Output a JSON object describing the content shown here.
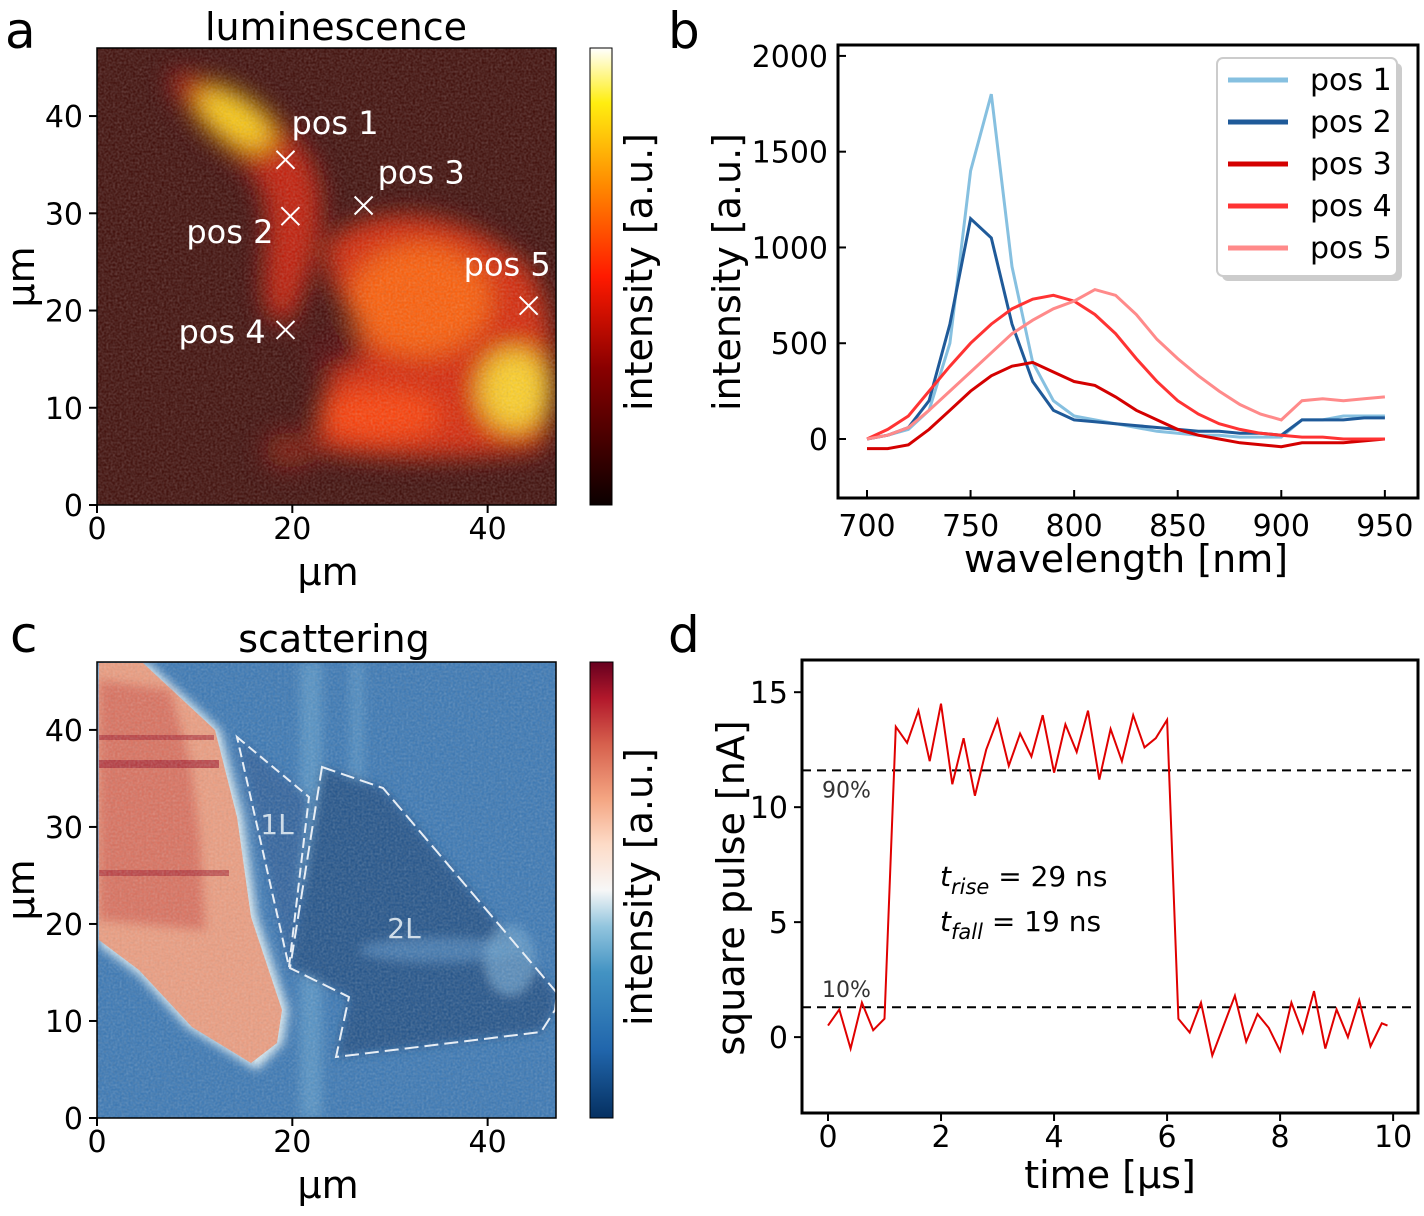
{
  "panel_labels": [
    "a",
    "b",
    "c",
    "d"
  ],
  "chart_data": [
    {
      "type": "heatmap",
      "panel": "a",
      "title": "luminescence",
      "xlabel": "µm",
      "ylabel": "µm",
      "xticks": [
        "0",
        "20",
        "40"
      ],
      "yticks": [
        "0",
        "10",
        "20",
        "30",
        "40"
      ],
      "xlim": [
        0,
        47
      ],
      "ylim": [
        0,
        47
      ],
      "colorbar_label": "intensity [a.u.]",
      "colormap": "hot",
      "markers": [
        {
          "label": "pos 1",
          "x": 19.3,
          "y": 35.5
        },
        {
          "label": "pos 2",
          "x": 19.8,
          "y": 29.7
        },
        {
          "label": "pos 3",
          "x": 27.3,
          "y": 30.8
        },
        {
          "label": "pos 4",
          "x": 19.3,
          "y": 18.0
        },
        {
          "label": "pos 5",
          "x": 44.2,
          "y": 20.5
        }
      ]
    },
    {
      "type": "line",
      "panel": "b",
      "xlabel": "wavelength [nm]",
      "ylabel": "intensity [a.u.]",
      "xticks": [
        "700",
        "750",
        "800",
        "850",
        "900",
        "950"
      ],
      "yticks": [
        "0",
        "500",
        "1000",
        "1500",
        "2000"
      ],
      "xlim": [
        686,
        966
      ],
      "ylim": [
        -308,
        2057
      ],
      "legend": "top-right",
      "x": [
        700,
        710,
        720,
        730,
        740,
        750,
        760,
        770,
        780,
        790,
        800,
        810,
        820,
        830,
        840,
        850,
        860,
        870,
        880,
        890,
        900,
        910,
        920,
        930,
        940,
        950
      ],
      "series": [
        {
          "name": "pos 1",
          "color": "#86c0e0",
          "values": [
            0,
            20,
            50,
            150,
            500,
            1400,
            1800,
            900,
            400,
            200,
            120,
            100,
            80,
            60,
            40,
            30,
            20,
            20,
            10,
            10,
            10,
            100,
            100,
            120,
            120,
            120
          ]
        },
        {
          "name": "pos 2",
          "color": "#1f5a99",
          "values": [
            0,
            20,
            60,
            200,
            600,
            1150,
            1050,
            600,
            300,
            150,
            100,
            90,
            80,
            70,
            60,
            50,
            40,
            40,
            30,
            30,
            20,
            100,
            100,
            100,
            110,
            110
          ]
        },
        {
          "name": "pos 3",
          "color": "#d40000",
          "values": [
            -50,
            -50,
            -30,
            50,
            150,
            250,
            330,
            380,
            400,
            350,
            300,
            280,
            220,
            150,
            100,
            50,
            20,
            0,
            -20,
            -30,
            -40,
            -20,
            -20,
            -20,
            -10,
            0
          ]
        },
        {
          "name": "pos 4",
          "color": "#ff3333",
          "values": [
            0,
            50,
            120,
            250,
            380,
            500,
            600,
            680,
            730,
            750,
            720,
            650,
            550,
            420,
            300,
            200,
            130,
            80,
            50,
            30,
            20,
            10,
            10,
            0,
            0,
            0
          ]
        },
        {
          "name": "pos 5",
          "color": "#ff8a8a",
          "values": [
            0,
            20,
            60,
            150,
            250,
            350,
            450,
            550,
            620,
            680,
            720,
            780,
            750,
            650,
            520,
            420,
            330,
            250,
            180,
            130,
            100,
            200,
            210,
            200,
            210,
            220
          ]
        }
      ]
    },
    {
      "type": "heatmap",
      "panel": "c",
      "title": "scattering",
      "xlabel": "µm",
      "ylabel": "µm",
      "xticks": [
        "0",
        "20",
        "40"
      ],
      "yticks": [
        "0",
        "10",
        "20",
        "30",
        "40"
      ],
      "xlim": [
        0,
        47
      ],
      "ylim": [
        0,
        47
      ],
      "colorbar_label": "intensity [a.u.]",
      "colormap": "RdBu_r",
      "regions": [
        "1L",
        "2L"
      ]
    },
    {
      "type": "line",
      "panel": "d",
      "xlabel": "time [µs]",
      "ylabel": "square pulse [nA]",
      "xticks": [
        "0",
        "2",
        "4",
        "6",
        "8",
        "10"
      ],
      "yticks": [
        "0",
        "5",
        "10",
        "15"
      ],
      "xlim": [
        -0.46,
        10.44
      ],
      "ylim": [
        -3.3,
        16.4
      ],
      "color": "#e00000",
      "x": [
        0,
        0.2,
        0.4,
        0.6,
        0.8,
        1.0,
        1.2,
        1.4,
        1.6,
        1.8,
        2.0,
        2.2,
        2.4,
        2.6,
        2.8,
        3.0,
        3.2,
        3.4,
        3.6,
        3.8,
        4.0,
        4.2,
        4.4,
        4.6,
        4.8,
        5.0,
        5.2,
        5.4,
        5.6,
        5.8,
        6.0,
        6.2,
        6.4,
        6.6,
        6.8,
        7.0,
        7.2,
        7.4,
        7.6,
        7.8,
        8.0,
        8.2,
        8.4,
        8.6,
        8.8,
        9.0,
        9.2,
        9.4,
        9.6,
        9.8,
        9.9
      ],
      "values": [
        0.5,
        1.2,
        -0.5,
        1.5,
        0.3,
        0.8,
        13.5,
        12.8,
        14.2,
        12.0,
        14.5,
        11.0,
        13.0,
        10.5,
        12.5,
        13.8,
        11.8,
        13.2,
        12.2,
        14.0,
        11.5,
        13.6,
        12.4,
        14.2,
        11.2,
        13.4,
        12.0,
        14.0,
        12.6,
        13.0,
        13.8,
        0.8,
        0.2,
        1.5,
        -0.8,
        0.5,
        1.8,
        -0.2,
        1.0,
        0.4,
        -0.6,
        1.5,
        0.2,
        2.0,
        -0.5,
        1.2,
        0.0,
        1.6,
        -0.4,
        0.6,
        0.5
      ],
      "hlines": [
        {
          "label": "90%",
          "y": 11.6
        },
        {
          "label": "10%",
          "y": 1.3
        }
      ],
      "annotations": {
        "rise_sym": "t",
        "rise_sub": "rise",
        "rise_val": " = 29 ns",
        "fall_sym": "t",
        "fall_sub": "fall",
        "fall_val": " = 19 ns"
      }
    }
  ]
}
